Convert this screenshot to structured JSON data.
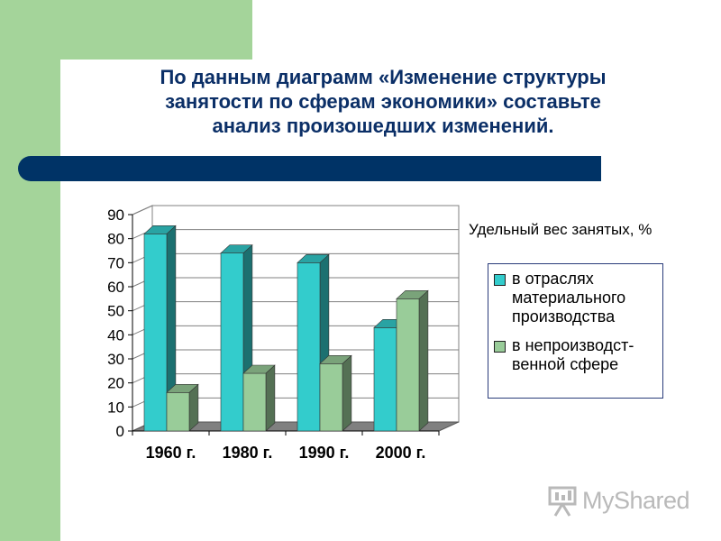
{
  "slide": {
    "title_lines": [
      "По данным диаграмм «Изменение структуры",
      "занятости по сферам экономики» составьте",
      "анализ произошедших изменений."
    ],
    "colors": {
      "left_strip": "#a4d49a",
      "title_text": "#0b2f67",
      "title_bar": "#003366"
    }
  },
  "chart_data": {
    "type": "bar",
    "title": "Удельный вес занятых, %",
    "categories": [
      "1960 г.",
      "1980 г.",
      "1990 г.",
      "2000 г."
    ],
    "series": [
      {
        "name": "в отраслях материального производства",
        "values": [
          82,
          74,
          70,
          43
        ],
        "color": "#33cccc"
      },
      {
        "name": "в непроизводст-венной сфере",
        "values": [
          16,
          24,
          28,
          55
        ],
        "color": "#99cc99"
      }
    ],
    "ylim": [
      0,
      90
    ],
    "yticks": [
      0,
      10,
      20,
      30,
      40,
      50,
      60,
      70,
      80,
      90
    ],
    "grid": true,
    "legend_position": "right",
    "style": "3d-column"
  },
  "legend": {
    "title": "Удельный вес занятых, %",
    "items": [
      {
        "lines": [
          "в отраслях",
          "материального",
          "производства"
        ],
        "color": "#33cccc"
      },
      {
        "lines": [
          "в непроизводст-",
          "венной сфере"
        ],
        "color": "#99cc99"
      }
    ]
  },
  "logo": {
    "text": "MyShared",
    "icon": "presentation-board-icon"
  }
}
